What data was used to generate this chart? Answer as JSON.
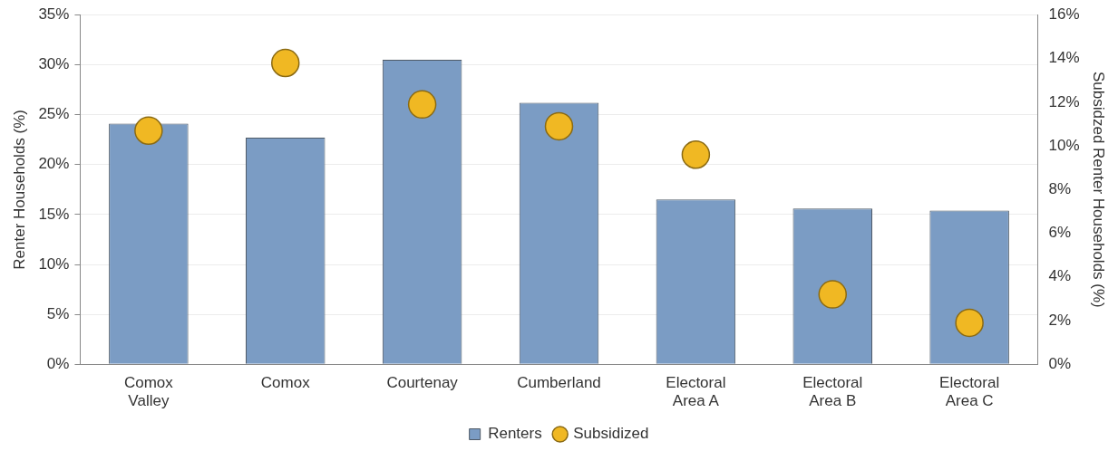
{
  "chart_data": {
    "type": "bar",
    "categories": [
      "Comox\nValley",
      "Comox",
      "Courtenay",
      "Cumberland",
      "Electoral\nArea A",
      "Electoral\nArea B",
      "Electoral\nArea C"
    ],
    "series": [
      {
        "name": "Renters",
        "color": "#7b9cc4",
        "values": [
          24.1,
          22.7,
          30.5,
          26.2,
          16.5,
          15.6,
          15.4
        ]
      },
      {
        "name": "Subsidized",
        "type": "scatter",
        "axis": "y2",
        "color": "#f0b823",
        "marker": "circle",
        "values": [
          10.7,
          13.8,
          11.9,
          10.9,
          9.6,
          3.2,
          1.9
        ]
      }
    ],
    "ylabel": "Renter Households (%)",
    "y2label": "Subsidzed Renter Households (%)",
    "ylim": [
      0,
      35
    ],
    "yticks": [
      {
        "value": 0,
        "label": "0%"
      },
      {
        "value": 5,
        "label": "5%"
      },
      {
        "value": 10,
        "label": "10%"
      },
      {
        "value": 15,
        "label": "15%"
      },
      {
        "value": 20,
        "label": "20%"
      },
      {
        "value": 25,
        "label": "25%"
      },
      {
        "value": 30,
        "label": "30%"
      },
      {
        "value": 35,
        "label": "35%"
      }
    ],
    "y2lim": [
      0,
      16
    ],
    "y2ticks": [
      {
        "value": 0,
        "label": "0%"
      },
      {
        "value": 2,
        "label": "2%"
      },
      {
        "value": 4,
        "label": "4%"
      },
      {
        "value": 6,
        "label": "6%"
      },
      {
        "value": 8,
        "label": "8%"
      },
      {
        "value": 10,
        "label": "10%"
      },
      {
        "value": 12,
        "label": "12%"
      },
      {
        "value": 14,
        "label": "14%"
      },
      {
        "value": 16,
        "label": "16%"
      }
    ],
    "grid": "y",
    "legend": "bottom"
  }
}
